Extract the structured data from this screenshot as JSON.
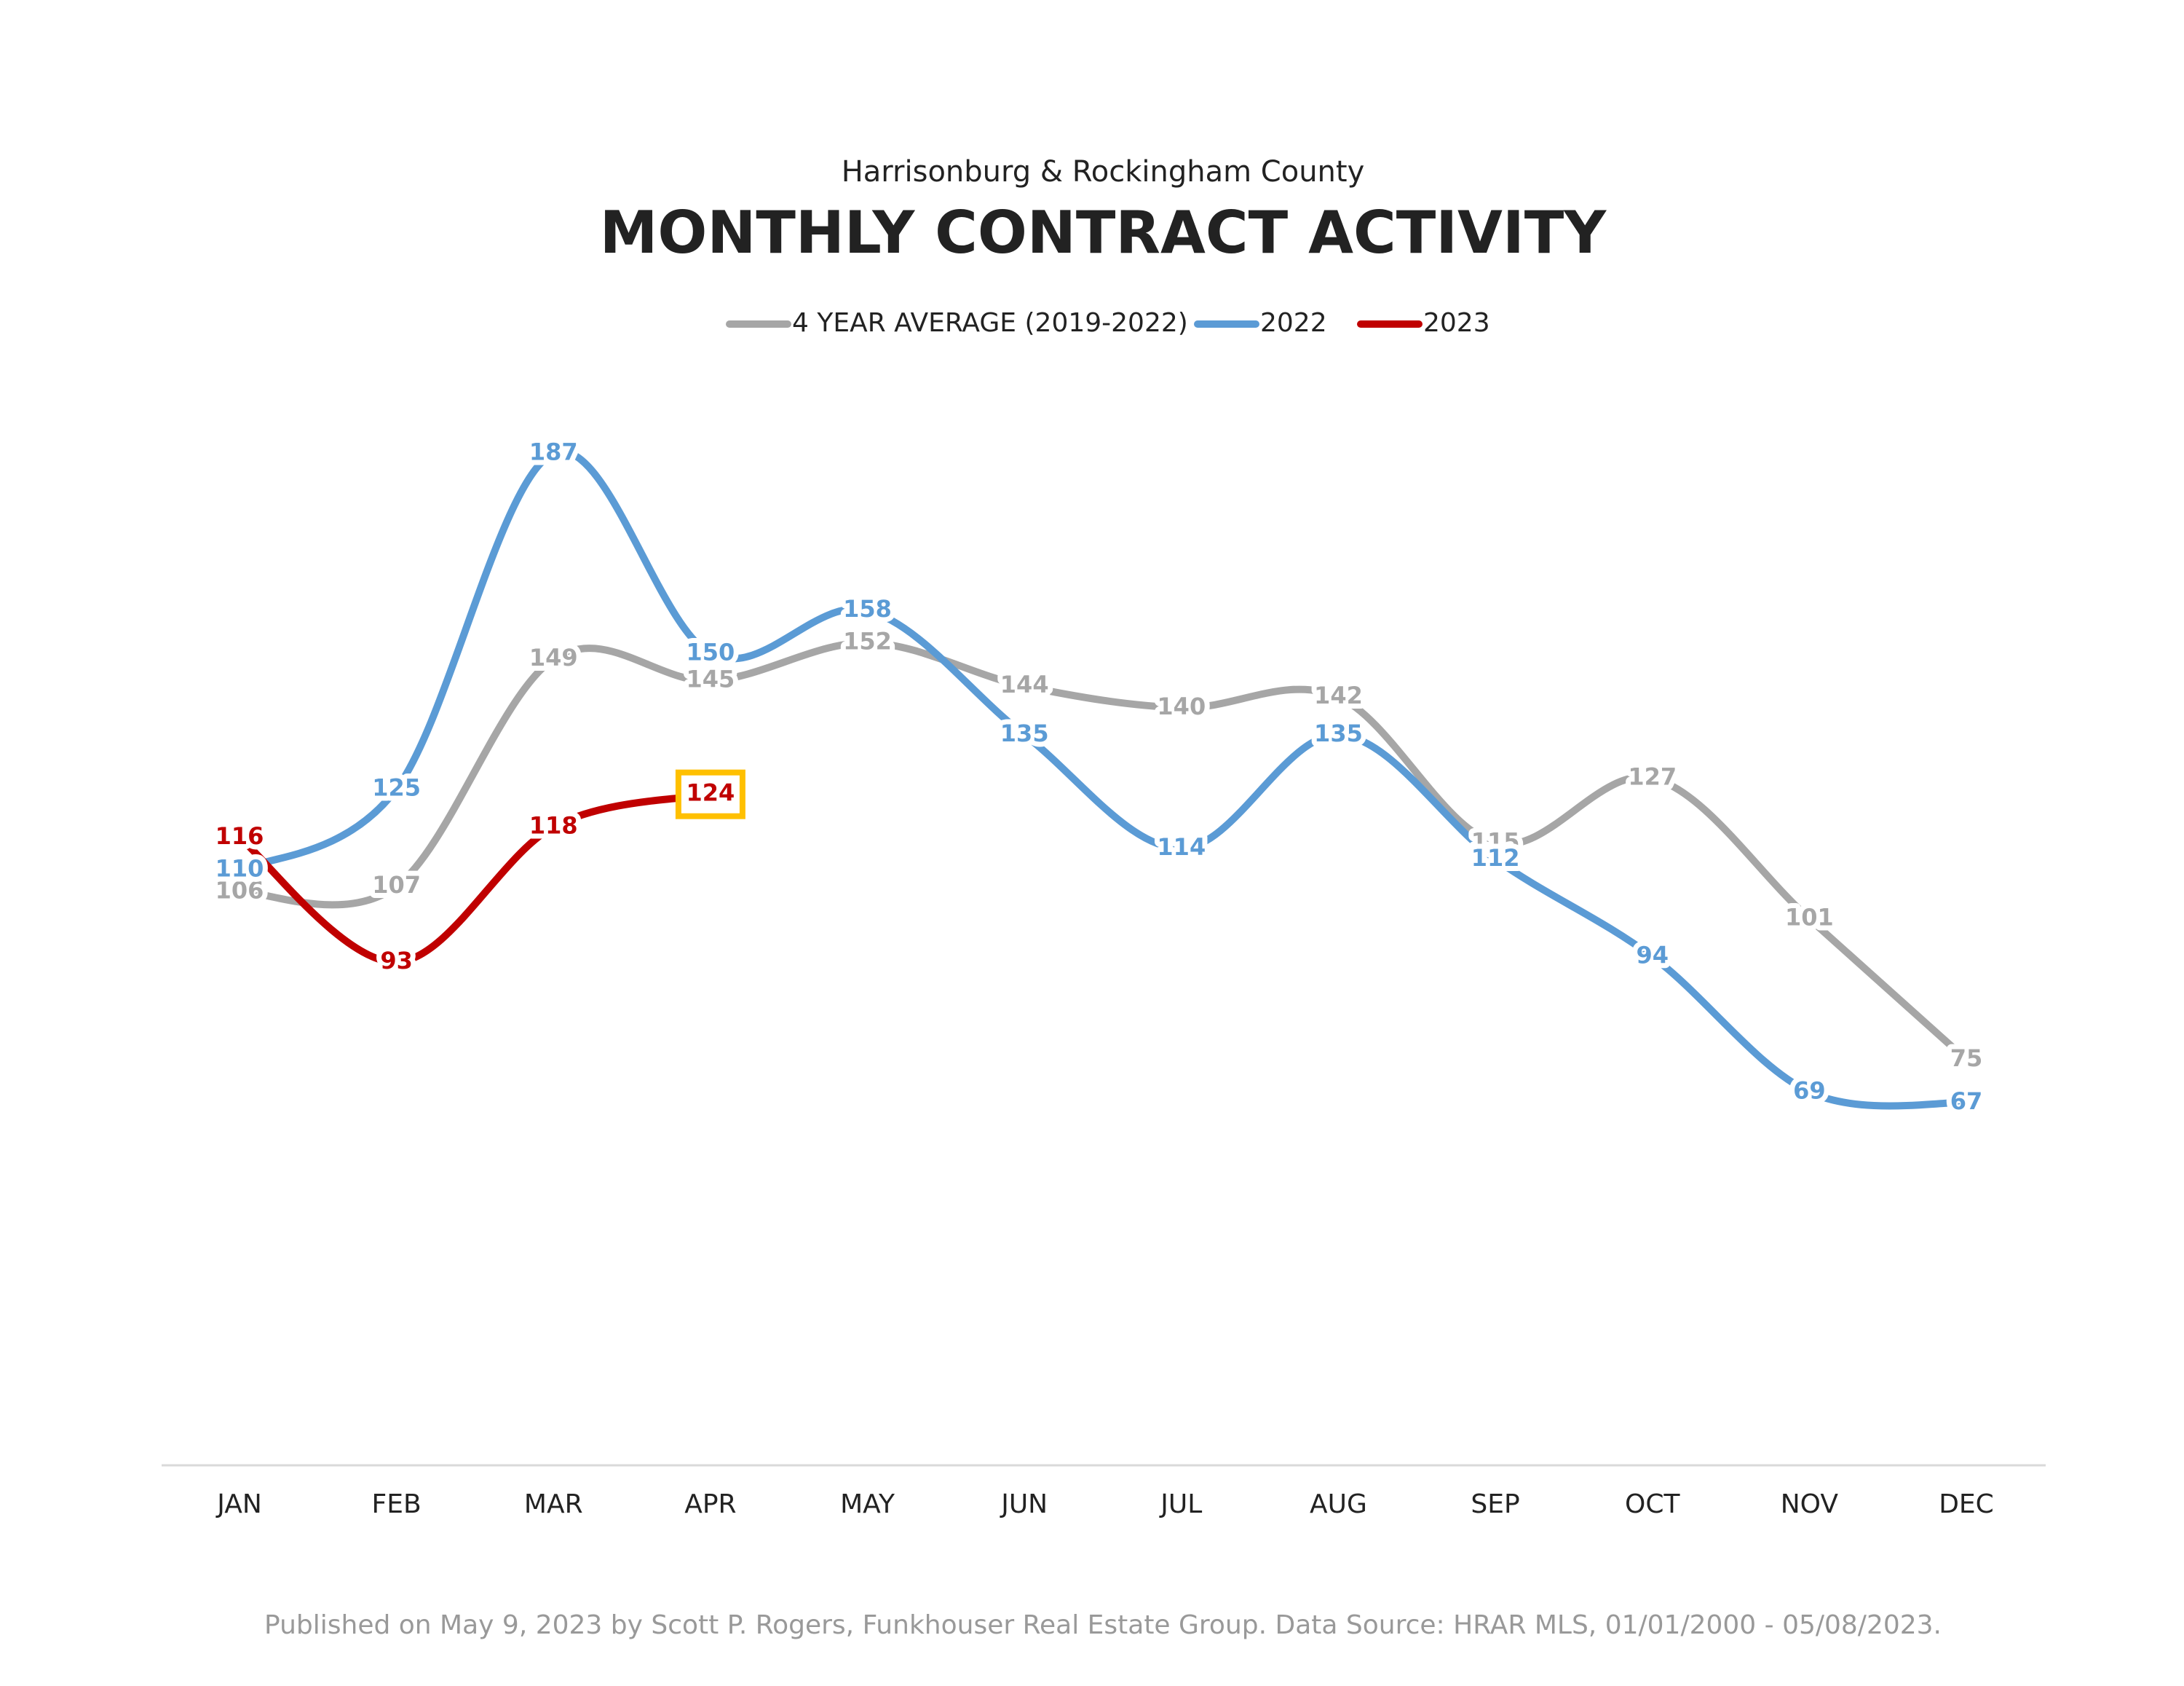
{
  "chart_data": {
    "type": "line",
    "subtitle": "Harrisonburg & Rockingham County",
    "title": "MONTHLY CONTRACT ACTIVITY",
    "categories": [
      "JAN",
      "FEB",
      "MAR",
      "APR",
      "MAY",
      "JUN",
      "JUL",
      "AUG",
      "SEP",
      "OCT",
      "NOV",
      "DEC"
    ],
    "series": [
      {
        "name": "4 YEAR AVERAGE (2019-2022)",
        "color": "#a6a6a6",
        "values": [
          106,
          107,
          149,
          145,
          152,
          144,
          140,
          142,
          115,
          127,
          101,
          75
        ]
      },
      {
        "name": "2022",
        "color": "#5b9bd5",
        "values": [
          110,
          125,
          187,
          150,
          158,
          135,
          114,
          135,
          112,
          94,
          69,
          67
        ]
      },
      {
        "name": "2023",
        "color": "#c00000",
        "values": [
          116,
          93,
          118,
          124,
          null,
          null,
          null,
          null,
          null,
          null,
          null,
          null
        ]
      }
    ],
    "ylim": [
      0,
      200
    ],
    "legend": "top",
    "footnote": "Published on May 9, 2023 by Scott P. Rogers, Funkhouser Real Estate Group. Data Source: HRAR MLS, 01/01/2000 - 05/08/2023."
  }
}
